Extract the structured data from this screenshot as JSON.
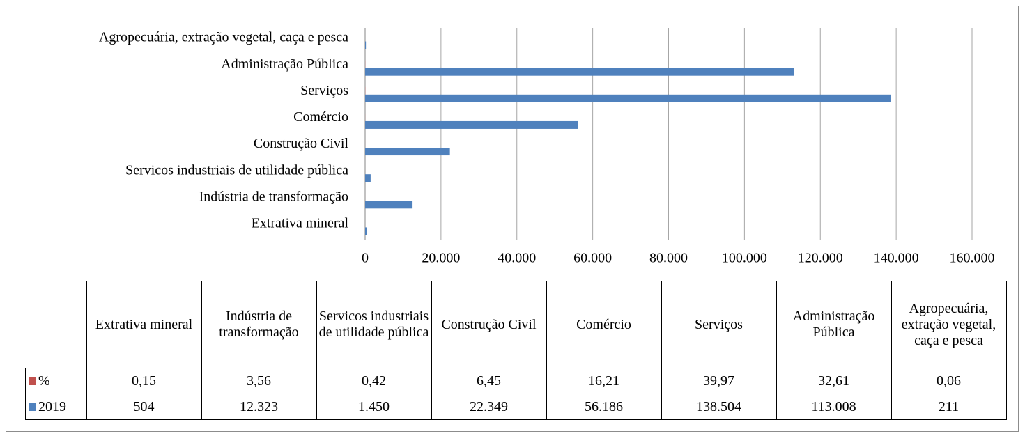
{
  "chart_data": {
    "type": "bar",
    "orientation": "horizontal",
    "categories": [
      "Extrativa mineral",
      "Indústria de transformação",
      "Servicos industriais de utilidade pública",
      "Construção Civil",
      "Comércio",
      "Serviços",
      "Administração Pública",
      "Agropecuária, extração vegetal, caça e pesca"
    ],
    "series": [
      {
        "name": "%",
        "color": "#c0504d",
        "values": [
          0.15,
          3.56,
          0.42,
          6.45,
          16.21,
          39.97,
          32.61,
          0.06
        ],
        "value_labels": [
          "0,15",
          "3,56",
          "0,42",
          "6,45",
          "16,21",
          "39,97",
          "32,61",
          "0,06"
        ]
      },
      {
        "name": "2019",
        "color": "#4f81bd",
        "values": [
          504,
          12323,
          1450,
          22349,
          56186,
          138504,
          113008,
          211
        ],
        "value_labels": [
          "504",
          "12.323",
          "1.450",
          "22.349",
          "56.186",
          "138.504",
          "113.008",
          "211"
        ]
      }
    ],
    "xlim": [
      0,
      160000
    ],
    "xticks": [
      0,
      {
        "value": 20000,
        "label": "20.000"
      },
      {
        "value": 40000,
        "label": "40.000"
      },
      {
        "value": 60000,
        "label": "60.000"
      },
      {
        "value": 80000,
        "label": "80.000"
      },
      {
        "value": 100000,
        "label": "100.000"
      },
      {
        "value": 120000,
        "label": "120.000"
      },
      {
        "value": 140000,
        "label": "140.000"
      },
      {
        "value": 160000,
        "label": "160.000"
      }
    ],
    "grid": true,
    "data_table": true
  }
}
